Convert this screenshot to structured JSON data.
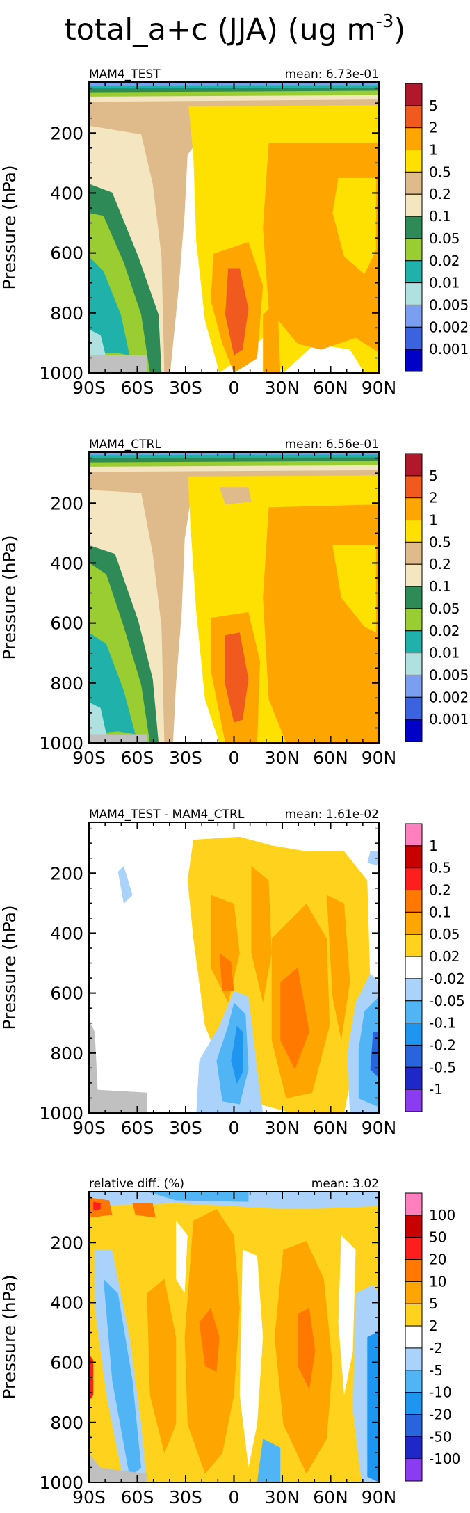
{
  "figure": {
    "title_main": "total_a+c (JJA) (ug m",
    "title_exp": "-3",
    "title_close": ")"
  },
  "chart_data": [
    {
      "type": "heatmap",
      "panel": "MAM4_TEST",
      "title_left": "MAM4_TEST",
      "title_right": "mean: 6.73e-01",
      "ylabel": "Pressure (hPa)",
      "xlabel": "",
      "x_ticks": [
        "90S",
        "60S",
        "30S",
        "0",
        "30N",
        "60N",
        "90N"
      ],
      "x_tick_values": [
        -90,
        -60,
        -30,
        0,
        30,
        60,
        90
      ],
      "y_ticks": [
        "200",
        "400",
        "600",
        "800",
        "1000"
      ],
      "y_tick_values": [
        200,
        400,
        600,
        800,
        1000
      ],
      "xlim": [
        -90,
        90
      ],
      "ylim": [
        1000,
        30
      ],
      "levels": [
        "5",
        "2",
        "1",
        "0.5",
        "0.2",
        "0.1",
        "0.05",
        "0.02",
        "0.01",
        "0.005",
        "0.002",
        "0.001"
      ],
      "colors": [
        "#b2182b",
        "#f05a1e",
        "#ffa500",
        "#ffe100",
        "#dfbb8b",
        "#f3e6c1",
        "#2e8b57",
        "#9acd32",
        "#20b2aa",
        "#afe1e1",
        "#7b9ff0",
        "#3b63e0",
        "#0000c8"
      ]
    },
    {
      "type": "heatmap",
      "panel": "MAM4_CTRL",
      "title_left": "MAM4_CTRL",
      "title_right": "mean: 6.56e-01",
      "ylabel": "Pressure (hPa)",
      "xlabel": "",
      "x_ticks": [
        "90S",
        "60S",
        "30S",
        "0",
        "30N",
        "60N",
        "90N"
      ],
      "x_tick_values": [
        -90,
        -60,
        -30,
        0,
        30,
        60,
        90
      ],
      "y_ticks": [
        "200",
        "400",
        "600",
        "800",
        "1000"
      ],
      "y_tick_values": [
        200,
        400,
        600,
        800,
        1000
      ],
      "xlim": [
        -90,
        90
      ],
      "ylim": [
        1000,
        30
      ],
      "levels": [
        "5",
        "2",
        "1",
        "0.5",
        "0.2",
        "0.1",
        "0.05",
        "0.02",
        "0.01",
        "0.005",
        "0.002",
        "0.001"
      ],
      "colors": [
        "#b2182b",
        "#f05a1e",
        "#ffa500",
        "#ffe100",
        "#dfbb8b",
        "#f3e6c1",
        "#2e8b57",
        "#9acd32",
        "#20b2aa",
        "#afe1e1",
        "#7b9ff0",
        "#3b63e0",
        "#0000c8"
      ]
    },
    {
      "type": "heatmap",
      "panel": "difference",
      "title_left": "MAM4_TEST - MAM4_CTRL",
      "title_right": "mean: 1.61e-02",
      "ylabel": "Pressure (hPa)",
      "xlabel": "",
      "x_ticks": [
        "90S",
        "60S",
        "30S",
        "0",
        "30N",
        "60N",
        "90N"
      ],
      "x_tick_values": [
        -90,
        -60,
        -30,
        0,
        30,
        60,
        90
      ],
      "y_ticks": [
        "200",
        "400",
        "600",
        "800",
        "1000"
      ],
      "y_tick_values": [
        200,
        400,
        600,
        800,
        1000
      ],
      "xlim": [
        -90,
        90
      ],
      "ylim": [
        1000,
        30
      ],
      "levels": [
        "1",
        "0.5",
        "0.2",
        "0.1",
        "0.05",
        "0.02",
        "-0.02",
        "-0.05",
        "-0.1",
        "-0.2",
        "-0.5",
        "-1"
      ],
      "colors": [
        "#ff7fbf",
        "#c80000",
        "#ff1e1e",
        "#ff7800",
        "#ffa500",
        "#ffd21e",
        "#ffffff",
        "#aad2fa",
        "#50b4f5",
        "#1e96f0",
        "#2864dc",
        "#1e28c8",
        "#8c3cf0"
      ]
    },
    {
      "type": "heatmap",
      "panel": "relative difference",
      "title_left": "relative diff. (%)",
      "title_right": "mean:  3.02",
      "ylabel": "Pressure (hPa)",
      "xlabel": "",
      "x_ticks": [
        "90S",
        "60S",
        "30S",
        "0",
        "30N",
        "60N",
        "90N"
      ],
      "x_tick_values": [
        -90,
        -60,
        -30,
        0,
        30,
        60,
        90
      ],
      "y_ticks": [
        "200",
        "400",
        "600",
        "800",
        "1000"
      ],
      "y_tick_values": [
        200,
        400,
        600,
        800,
        1000
      ],
      "xlim": [
        -90,
        90
      ],
      "ylim": [
        1000,
        30
      ],
      "levels": [
        "100",
        "50",
        "20",
        "10",
        "5",
        "2",
        "-2",
        "-5",
        "-10",
        "-20",
        "-50",
        "-100"
      ],
      "colors": [
        "#ff7fbf",
        "#c80000",
        "#ff1e1e",
        "#ff7800",
        "#ffa500",
        "#ffd21e",
        "#ffffff",
        "#aad2fa",
        "#50b4f5",
        "#1e96f0",
        "#2864dc",
        "#1e28c8",
        "#8c3cf0"
      ]
    }
  ]
}
